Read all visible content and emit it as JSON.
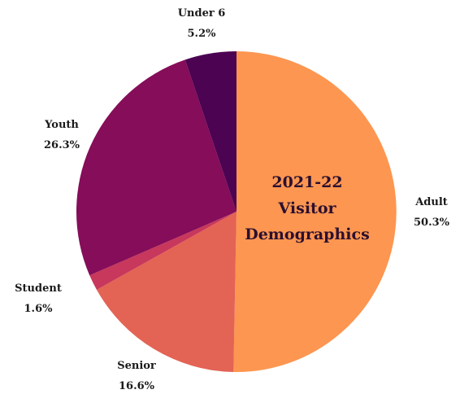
{
  "chart_data": {
    "type": "pie",
    "title_lines": [
      "2021-22",
      "Visitor",
      "Demographics"
    ],
    "slices": [
      {
        "label": "Adult",
        "value": 50.3,
        "value_label": "50.3%",
        "color": "#fd9650"
      },
      {
        "label": "Senior",
        "value": 16.6,
        "value_label": "16.6%",
        "color": "#e36355"
      },
      {
        "label": "Student",
        "value": 1.6,
        "value_label": "1.6%",
        "color": "#c8375c"
      },
      {
        "label": "Youth",
        "value": 26.3,
        "value_label": "26.3%",
        "color": "#850d59"
      },
      {
        "label": "Under 6",
        "value": 5.2,
        "value_label": "5.2%",
        "color": "#4b0352"
      }
    ],
    "start_angle_deg": 0,
    "direction": "clockwise"
  }
}
